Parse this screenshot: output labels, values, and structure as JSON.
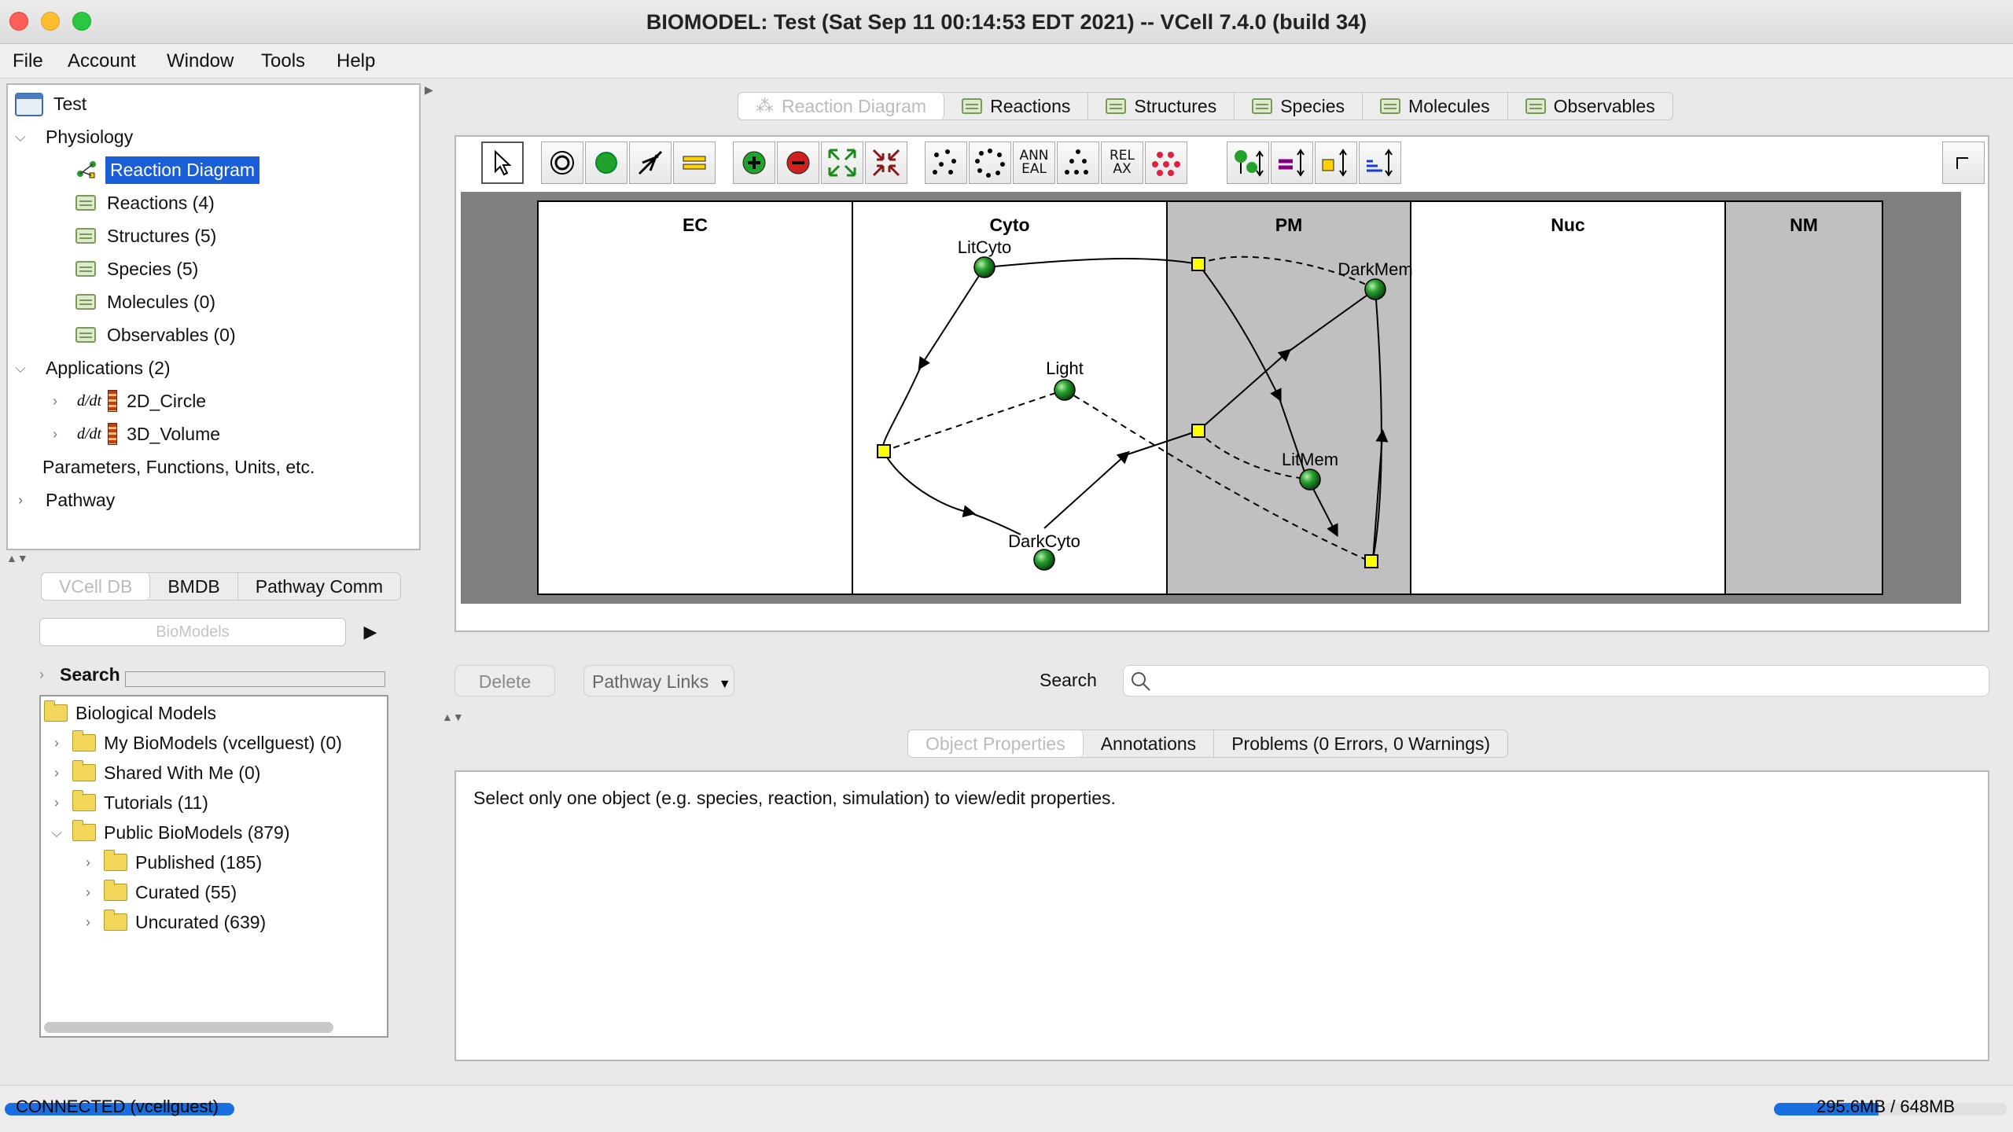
{
  "window": {
    "title": "BIOMODEL: Test (Sat Sep 11 00:14:53 EDT 2021) -- VCell 7.4.0 (build 34)",
    "traffic_colors": {
      "close": "#fe5f57",
      "minimize": "#febc2e",
      "zoom": "#28c840"
    }
  },
  "menu": [
    "File",
    "Account",
    "Window",
    "Tools",
    "Help"
  ],
  "tree": {
    "root": "Test",
    "physiology": "Physiology",
    "items": [
      {
        "label": "Reaction Diagram",
        "selected": true
      },
      {
        "label": "Reactions (4)"
      },
      {
        "label": "Structures (5)"
      },
      {
        "label": "Species (5)"
      },
      {
        "label": "Molecules (0)"
      },
      {
        "label": "Observables (0)"
      }
    ],
    "applications": "Applications (2)",
    "apps": [
      "2D_Circle",
      "3D_Volume"
    ],
    "app_icon_text": "d/dt",
    "parameters": "Parameters, Functions, Units, etc.",
    "pathway": "Pathway"
  },
  "db": {
    "tabs": [
      "VCell DB",
      "BMDB",
      "Pathway Comm"
    ],
    "search_placeholder": "BioModels",
    "go_glyph": "▶",
    "search_label": "Search",
    "items": [
      {
        "label": "Biological Models",
        "level": 0
      },
      {
        "label": "My BioModels (vcellguest) (0)",
        "level": 1
      },
      {
        "label": "Shared With Me (0)",
        "level": 1
      },
      {
        "label": "Tutorials (11)",
        "level": 1
      },
      {
        "label": "Public BioModels (879)",
        "level": 1
      },
      {
        "label": "Published (185)",
        "level": 2
      },
      {
        "label": "Curated (55)",
        "level": 2
      },
      {
        "label": "Uncurated (639)",
        "level": 2
      }
    ]
  },
  "top_tabs": [
    "Reaction Diagram",
    "Reactions",
    "Structures",
    "Species",
    "Molecules",
    "Observables"
  ],
  "toolbar": {
    "anneal": "ANN EAL",
    "relax": "REL AX"
  },
  "diagram": {
    "compartments": [
      "EC",
      "Cyto",
      "PM",
      "Nuc",
      "NM"
    ],
    "species": [
      "LitCyto",
      "Light",
      "DarkCyto",
      "DarkMem",
      "LitMem"
    ],
    "colors": {
      "membrane": "#c0c0c0",
      "node": "#1e8c2a",
      "reaction": "#ffff00"
    }
  },
  "actions": {
    "delete": "Delete",
    "pathway_links": "Pathway Links",
    "search": "Search"
  },
  "props": {
    "tabs": [
      "Object Properties",
      "Annotations",
      "Problems (0 Errors, 0 Warnings)"
    ],
    "message": "Select only one object (e.g. species, reaction, simulation) to view/edit properties."
  },
  "status": {
    "connection": "CONNECTED (vcellguest)",
    "memory": "295.6MB / 648MB"
  }
}
